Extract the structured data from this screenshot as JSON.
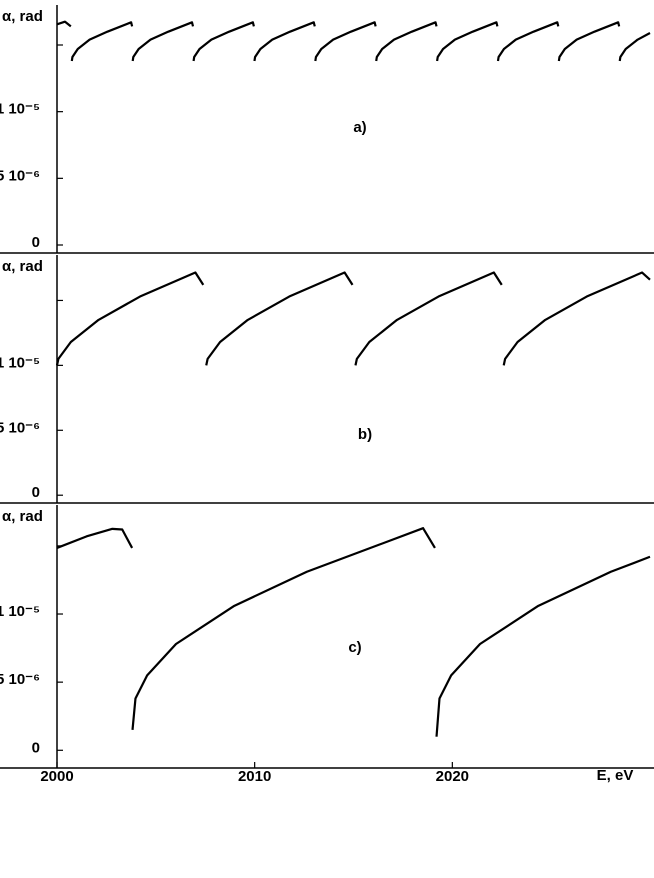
{
  "chart_data": [
    {
      "type": "line",
      "y_label": "α, rad",
      "annotation": "a)",
      "x": [
        2000,
        2000.4,
        2000.7,
        null,
        2000.75,
        2000.78,
        2001.05,
        2001.65,
        2002.55,
        2003.75,
        2003.8,
        null,
        2003.83,
        2003.86,
        2004.13,
        2004.73,
        2005.63,
        2006.83,
        2006.88,
        null,
        2006.91,
        2006.94,
        2007.21,
        2007.81,
        2008.71,
        2009.91,
        2009.96,
        null,
        2009.99,
        2010.02,
        2010.29,
        2010.89,
        2011.79,
        2012.99,
        2013.04,
        null,
        2013.07,
        2013.1,
        2013.37,
        2013.97,
        2014.87,
        2016.07,
        2016.12,
        null,
        2016.15,
        2016.18,
        2016.45,
        2017.05,
        2017.95,
        2019.15,
        2019.2,
        null,
        2019.23,
        2019.26,
        2019.53,
        2020.13,
        2021.03,
        2022.23,
        2022.28,
        null,
        2022.31,
        2022.34,
        2022.61,
        2023.21,
        2024.11,
        2025.31,
        2025.36,
        null,
        2025.39,
        2025.42,
        2025.69,
        2026.29,
        2027.19,
        2028.39,
        2028.44,
        null,
        2028.47,
        2028.5,
        2028.77,
        2029.37,
        2030
      ],
      "series": [
        {
          "color": "#000000",
          "values": [
            1.655e-05,
            1.675e-05,
            1.64e-05,
            null,
            1.38e-05,
            1.41e-05,
            1.47e-05,
            1.54e-05,
            1.6e-05,
            1.67e-05,
            1.64e-05,
            null,
            1.38e-05,
            1.41e-05,
            1.47e-05,
            1.54e-05,
            1.6e-05,
            1.67e-05,
            1.64e-05,
            null,
            1.38e-05,
            1.41e-05,
            1.47e-05,
            1.54e-05,
            1.6e-05,
            1.67e-05,
            1.64e-05,
            null,
            1.38e-05,
            1.41e-05,
            1.47e-05,
            1.54e-05,
            1.6e-05,
            1.67e-05,
            1.64e-05,
            null,
            1.38e-05,
            1.41e-05,
            1.47e-05,
            1.54e-05,
            1.6e-05,
            1.67e-05,
            1.64e-05,
            null,
            1.38e-05,
            1.41e-05,
            1.47e-05,
            1.54e-05,
            1.6e-05,
            1.67e-05,
            1.64e-05,
            null,
            1.38e-05,
            1.41e-05,
            1.47e-05,
            1.54e-05,
            1.6e-05,
            1.67e-05,
            1.64e-05,
            null,
            1.38e-05,
            1.41e-05,
            1.47e-05,
            1.54e-05,
            1.6e-05,
            1.67e-05,
            1.64e-05,
            null,
            1.38e-05,
            1.41e-05,
            1.47e-05,
            1.54e-05,
            1.6e-05,
            1.67e-05,
            1.64e-05,
            null,
            1.38e-05,
            1.41e-05,
            1.47e-05,
            1.54e-05,
            1.59e-05
          ]
        }
      ],
      "xlim": [
        2000,
        2030
      ],
      "ylim": [
        -6e-07,
        1.8e-05
      ],
      "yticks": [
        0,
        {
          "value": 5e-06,
          "label": "5 10⁻⁶"
        },
        {
          "value": 1e-05,
          "label": "1 10⁻⁵"
        },
        {
          "value": 1.5e-05,
          "label": null
        }
      ]
    },
    {
      "type": "line",
      "y_label": "α, rad",
      "annotation": "b)",
      "x": [
        2000,
        2000.07,
        2000.7,
        2002.1,
        2004.2,
        2007,
        2007.4,
        null,
        2007.55,
        2007.62,
        2008.25,
        2009.65,
        2011.75,
        2014.55,
        2014.95,
        null,
        2015.1,
        2015.17,
        2015.8,
        2017.2,
        2019.3,
        2022.1,
        2022.5,
        null,
        2022.6,
        2022.67,
        2023.3,
        2024.7,
        2026.8,
        2029.6,
        2030
      ],
      "series": [
        {
          "color": "#000000",
          "values": [
            1e-05,
            1.05e-05,
            1.18e-05,
            1.35e-05,
            1.53e-05,
            1.715e-05,
            1.62e-05,
            null,
            1e-05,
            1.05e-05,
            1.18e-05,
            1.35e-05,
            1.53e-05,
            1.715e-05,
            1.62e-05,
            null,
            1e-05,
            1.05e-05,
            1.18e-05,
            1.35e-05,
            1.53e-05,
            1.715e-05,
            1.62e-05,
            null,
            1e-05,
            1.05e-05,
            1.18e-05,
            1.35e-05,
            1.53e-05,
            1.715e-05,
            1.66e-05
          ]
        }
      ],
      "xlim": [
        2000,
        2030
      ],
      "ylim": [
        -6e-07,
        1.85e-05
      ],
      "yticks": [
        0,
        {
          "value": 5e-06,
          "label": "5 10⁻⁶"
        },
        {
          "value": 1e-05,
          "label": "1 10⁻⁵"
        },
        {
          "value": 1.5e-05,
          "label": null
        }
      ]
    },
    {
      "type": "line",
      "y_label": "α, rad",
      "annotation": "c)",
      "x_label": "E, eV",
      "x": [
        2000,
        2001.5,
        2002.8,
        2003.3,
        2003.8,
        null,
        2003.82,
        2003.97,
        2004.56,
        2006.02,
        2008.97,
        2012.64,
        2016.32,
        2018.52,
        2019.12,
        null,
        2019.2,
        2019.35,
        2019.94,
        2021.4,
        2024.35,
        2028.02,
        2030
      ],
      "series": [
        {
          "color": "#000000",
          "values": [
            1.485e-05,
            1.57e-05,
            1.625e-05,
            1.62e-05,
            1.485e-05,
            null,
            1.5e-06,
            3.8e-06,
            5.5e-06,
            7.8e-06,
            1.06e-05,
            1.31e-05,
            1.51e-05,
            1.63e-05,
            1.485e-05,
            null,
            1e-06,
            3.8e-06,
            5.5e-06,
            7.8e-06,
            1.06e-05,
            1.31e-05,
            1.42e-05
          ]
        }
      ],
      "xlim": [
        2000,
        2030
      ],
      "ylim": [
        -1.3e-06,
        1.8e-05
      ],
      "xticks": [
        2000,
        2010,
        2020
      ],
      "yticks": [
        0,
        {
          "value": 5e-06,
          "label": "5 10⁻⁶"
        },
        {
          "value": 1e-05,
          "label": "1 10⁻⁵"
        },
        {
          "value": 1.5e-05,
          "label": null
        }
      ]
    }
  ]
}
